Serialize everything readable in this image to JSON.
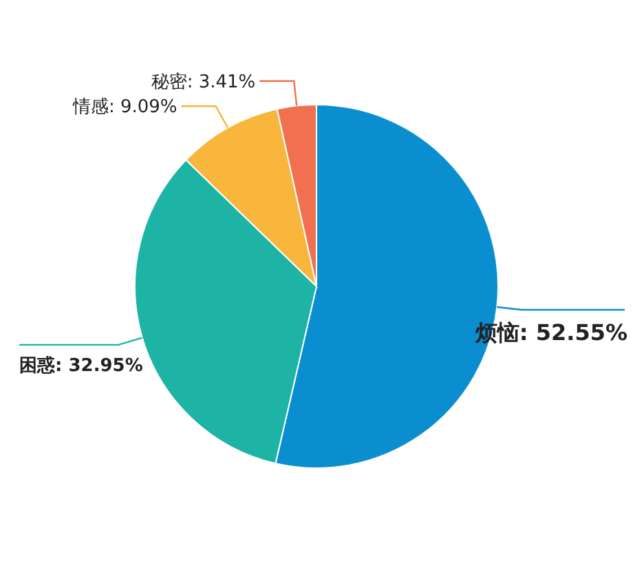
{
  "chart_data": {
    "type": "pie",
    "categories": [
      "烦恼",
      "困惑",
      "情感",
      "秘密"
    ],
    "values": [
      52.55,
      32.95,
      9.09,
      3.41
    ],
    "value_labels": [
      "52.55%",
      "32.95%",
      "9.09%",
      "3.41%"
    ],
    "colors": [
      "#0b8ed0",
      "#1db3a5",
      "#f8b63c",
      "#f0704f"
    ]
  }
}
